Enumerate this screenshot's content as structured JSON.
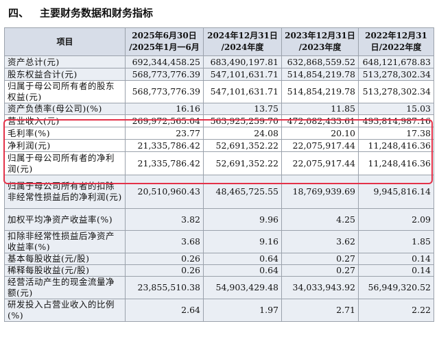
{
  "title": {
    "number": "四、",
    "text": "主要财务数据和财务指标"
  },
  "headers": [
    "项目",
    "2025年6月30日\n/2025年1月一6月",
    "2024年12月31日\n/2024年度",
    "2023年12月31日\n/2023年度",
    "2022年12月31\n日/2022年度"
  ],
  "rows": [
    {
      "label": "资产总计(元)",
      "values": [
        "692,344,458.25",
        "683,490,197.81",
        "632,868,559.52",
        "648,121,678.83"
      ]
    },
    {
      "label": "股东权益合计(元)",
      "values": [
        "568,773,776.39",
        "547,101,631.71",
        "514,854,219.78",
        "513,278,302.34"
      ]
    },
    {
      "label": "归属于母公司所有者的股东权益(元)",
      "values": [
        "568,773,776.39",
        "547,101,631.71",
        "514,854,219.78",
        "513,278,302.34"
      ]
    },
    {
      "label": "资产负债率(母公司)(%)",
      "values": [
        "16.16",
        "13.75",
        "11.85",
        "15.03"
      ]
    },
    {
      "label": "营业收入(元)",
      "values": [
        "269,972,565.04",
        "563,925,259.70",
        "472,082,433.61",
        "493,814,987.16"
      ]
    },
    {
      "label": "毛利率(%)",
      "values": [
        "23.77",
        "24.08",
        "20.10",
        "17.38"
      ]
    },
    {
      "label": "净利润(元)",
      "values": [
        "21,335,786.42",
        "52,691,352.22",
        "22,075,917.44",
        "11,248,416.36"
      ]
    },
    {
      "label": "归属于母公司所有者的净利润(元)",
      "values": [
        "21,335,786.42",
        "52,691,352.22",
        "22,075,917.44",
        "11,248,416.36"
      ]
    },
    {
      "label": "归属于母公司所有者的扣除非经常性损益后的净利润(元)",
      "values": [
        "20,510,960.43",
        "48,465,725.55",
        "18,769,939.69",
        "9,945,816.14"
      ]
    },
    {
      "label": "加权平均净资产收益率(%)",
      "values": [
        "3.82",
        "9.96",
        "4.25",
        "2.09"
      ]
    },
    {
      "label": "扣除非经常性损益后净资产收益率(%)",
      "values": [
        "3.68",
        "9.16",
        "3.62",
        "1.85"
      ]
    },
    {
      "label": "基本每股收益(元/股)",
      "values": [
        "0.26",
        "0.64",
        "0.27",
        "0.14"
      ]
    },
    {
      "label": "稀释每股收益(元/股)",
      "values": [
        "0.26",
        "0.64",
        "0.27",
        "0.14"
      ]
    },
    {
      "label": "经营活动产生的现金流量净额(元)",
      "values": [
        "23,855,510.38",
        "54,903,429.48",
        "34,033,943.92",
        "56,949,320.52"
      ]
    },
    {
      "label": "研发投入占营业收入的比例(%)",
      "values": [
        "2.64",
        "1.97",
        "2.71",
        "2.22"
      ]
    }
  ],
  "highlight_color": "#e33148"
}
